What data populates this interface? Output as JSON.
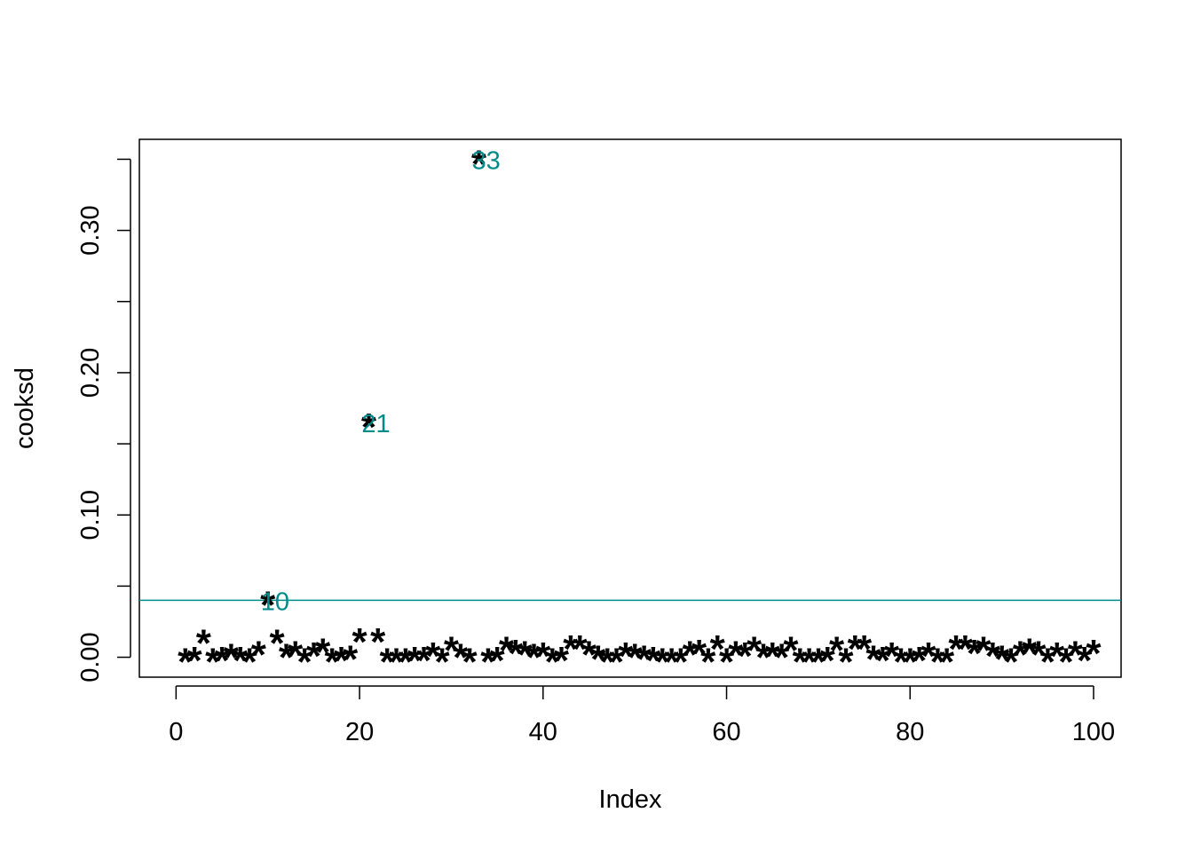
{
  "chart_data": {
    "type": "scatter",
    "title": "",
    "xlabel": "Index",
    "ylabel": "cooksd",
    "xlim": [
      -4,
      103
    ],
    "ylim": [
      -0.014,
      0.364
    ],
    "x_ticks": [
      0,
      20,
      40,
      60,
      80,
      100
    ],
    "x_tick_labels": [
      "0",
      "20",
      "40",
      "60",
      "80",
      "100"
    ],
    "y_ticks": [
      0.0,
      0.05,
      0.1,
      0.15,
      0.2,
      0.25,
      0.3,
      0.35
    ],
    "y_tick_labels": [
      "0.00",
      "",
      "0.10",
      "",
      "0.20",
      "",
      "0.30",
      ""
    ],
    "marker": "*",
    "grid": false,
    "legend": "none",
    "colors": {
      "points": "#000000",
      "labels": "#008B8B",
      "cutoff_line": "#008B8B"
    },
    "x": [
      1,
      2,
      3,
      4,
      5,
      6,
      7,
      8,
      9,
      10,
      11,
      12,
      13,
      14,
      15,
      16,
      17,
      18,
      19,
      20,
      21,
      22,
      23,
      24,
      25,
      26,
      27,
      28,
      29,
      30,
      31,
      32,
      33,
      34,
      35,
      36,
      37,
      38,
      39,
      40,
      41,
      42,
      43,
      44,
      45,
      46,
      47,
      48,
      49,
      50,
      51,
      52,
      53,
      54,
      55,
      56,
      57,
      58,
      59,
      60,
      61,
      62,
      63,
      64,
      65,
      66,
      67,
      68,
      69,
      70,
      71,
      72,
      73,
      74,
      75,
      76,
      77,
      78,
      79,
      80,
      81,
      82,
      83,
      84,
      85,
      86,
      87,
      88,
      89,
      90,
      91,
      92,
      93,
      94,
      95,
      96,
      97,
      98,
      99,
      100
    ],
    "y": [
      0.0,
      0.001,
      0.013,
      0.0,
      0.001,
      0.003,
      0.001,
      0.0,
      0.005,
      0.04,
      0.013,
      0.003,
      0.005,
      0.0,
      0.004,
      0.007,
      0.0,
      0.001,
      0.002,
      0.014,
      0.165,
      0.014,
      0.0,
      0.0,
      0.0,
      0.001,
      0.001,
      0.004,
      0.0,
      0.008,
      0.003,
      0.0,
      0.35,
      0.0,
      0.001,
      0.008,
      0.006,
      0.005,
      0.003,
      0.004,
      0.0,
      0.001,
      0.009,
      0.009,
      0.005,
      0.002,
      0.0,
      0.0,
      0.004,
      0.003,
      0.002,
      0.001,
      0.0,
      0.0,
      0.0,
      0.005,
      0.006,
      0.0,
      0.009,
      0.0,
      0.005,
      0.004,
      0.008,
      0.003,
      0.004,
      0.003,
      0.008,
      0.0,
      0.0,
      0.0,
      0.001,
      0.008,
      0.0,
      0.009,
      0.009,
      0.002,
      0.001,
      0.004,
      0.0,
      0.0,
      0.001,
      0.004,
      0.0,
      0.0,
      0.009,
      0.009,
      0.006,
      0.008,
      0.004,
      0.002,
      0.0,
      0.005,
      0.007,
      0.005,
      0.0,
      0.004,
      0.0,
      0.005,
      0.001,
      0.006
    ],
    "cutoff": 0.04,
    "labeled_points": [
      {
        "x": 10,
        "y": 0.04,
        "label": "10"
      },
      {
        "x": 21,
        "y": 0.165,
        "label": "21"
      },
      {
        "x": 33,
        "y": 0.35,
        "label": "33"
      }
    ]
  }
}
